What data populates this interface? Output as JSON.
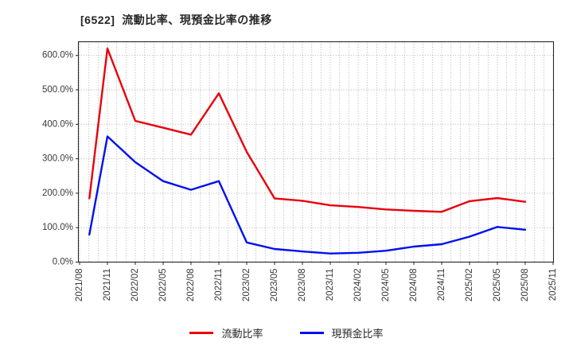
{
  "title": "[6522]  流動比率、現預金比率の推移",
  "colors": {
    "current_ratio": "#e8000b",
    "cash_ratio": "#0010ee",
    "grid": "#a8a8a8",
    "spine": "#262626",
    "tick_text": "#3a3a3a"
  },
  "chart_data": {
    "type": "line",
    "title": "[6522]  流動比率、現預金比率の推移",
    "xlabel": "",
    "ylabel": "",
    "ylim": [
      0,
      640
    ],
    "y_ticks": [
      0,
      100,
      200,
      300,
      400,
      500,
      600
    ],
    "y_tick_labels": [
      "0.0%",
      "100.0%",
      "200.0%",
      "300.0%",
      "400.0%",
      "500.0%",
      "600.0%"
    ],
    "x_tick_labels": [
      "2021/08",
      "2021/11",
      "2022/02",
      "2022/05",
      "2022/08",
      "2022/11",
      "2023/02",
      "2023/05",
      "2023/08",
      "2023/11",
      "2024/02",
      "2024/05",
      "2024/08",
      "2024/11",
      "2025/02",
      "2025/05",
      "2025/08",
      "2025/11"
    ],
    "grid": "dotted gray, vertical every month, horizontal every 100%",
    "legend_position": "lower center",
    "series": [
      {
        "name": "流動比率",
        "color": "#e8000b",
        "x_months": [
          "2021/09",
          "2021/11",
          "2022/02",
          "2022/05",
          "2022/08",
          "2022/11",
          "2023/02",
          "2023/05",
          "2023/08",
          "2023/11",
          "2024/02",
          "2024/05",
          "2024/08",
          "2024/11",
          "2025/02",
          "2025/05",
          "2025/08"
        ],
        "x_positions": [
          0.35,
          1,
          2,
          3,
          4,
          5,
          6,
          7,
          8,
          9,
          10,
          11,
          12,
          13,
          14,
          15,
          16
        ],
        "values": [
          185,
          620,
          410,
          390,
          370,
          490,
          320,
          185,
          178,
          165,
          160,
          153,
          149,
          146,
          177,
          186,
          175
        ]
      },
      {
        "name": "現預金比率",
        "color": "#0010ee",
        "x_months": [
          "2021/09",
          "2021/11",
          "2022/02",
          "2022/05",
          "2022/08",
          "2022/11",
          "2023/02",
          "2023/05",
          "2023/08",
          "2023/11",
          "2024/02",
          "2024/05",
          "2024/08",
          "2024/11",
          "2025/02",
          "2025/05",
          "2025/08"
        ],
        "x_positions": [
          0.35,
          1,
          2,
          3,
          4,
          5,
          6,
          7,
          8,
          9,
          10,
          11,
          12,
          13,
          14,
          15,
          16
        ],
        "values": [
          80,
          365,
          290,
          235,
          210,
          235,
          57,
          38,
          31,
          25,
          27,
          33,
          45,
          52,
          74,
          102,
          94
        ]
      }
    ]
  },
  "legend": {
    "items": [
      {
        "label": "流動比率"
      },
      {
        "label": "現預金比率"
      }
    ]
  }
}
